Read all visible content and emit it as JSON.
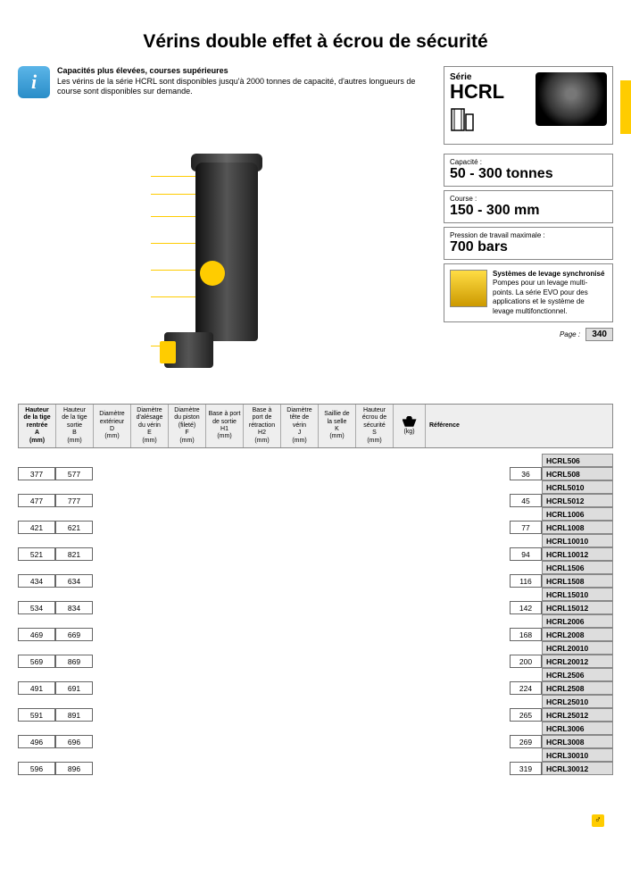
{
  "title": "Vérins double effet à écrou de sécurité",
  "info_box": {
    "heading": "Capacités plus élevées, courses supérieures",
    "body": "Les vérins de la série HCRL sont disponibles jusqu'à 2000 tonnes de capacité, d'autres longueurs de course sont disponibles sur demande."
  },
  "series": {
    "label": "Série",
    "name": "HCRL"
  },
  "specs": {
    "capacity": {
      "label": "Capacité :",
      "value": "50 - 300 tonnes"
    },
    "stroke": {
      "label": "Course :",
      "value": "150 - 300 mm"
    },
    "pressure": {
      "label": "Pression de travail maximale :",
      "value": "700 bars"
    }
  },
  "sync": {
    "title": "Systèmes de levage synchronisé",
    "body": "Pompes pour un levage multi-points. La série EVO pour des applications et le système de levage multifonctionnel."
  },
  "page_ref": {
    "label": "Page :",
    "num": "340"
  },
  "columns": [
    {
      "l1": "Hauteur",
      "l2": "de la tige",
      "l3": "rentrée",
      "sym": "A",
      "unit": "(mm)",
      "bold": true
    },
    {
      "l1": "Hauteur",
      "l2": "de la tige",
      "l3": "sortie",
      "sym": "B",
      "unit": "(mm)"
    },
    {
      "l1": "Diamètre",
      "l2": "extérieur",
      "l3": "",
      "sym": "D",
      "unit": "(mm)"
    },
    {
      "l1": "Diamètre",
      "l2": "d'alésage",
      "l3": "du vérin",
      "sym": "E",
      "unit": "(mm)"
    },
    {
      "l1": "Diamètre",
      "l2": "du piston",
      "l3": "(fileté)",
      "sym": "F",
      "unit": "(mm)"
    },
    {
      "l1": "Base à port",
      "l2": "de sortie",
      "l3": "",
      "sym": "H1",
      "unit": "(mm)"
    },
    {
      "l1": "Base à",
      "l2": "port de",
      "l3": "rétraction",
      "sym": "H2",
      "unit": "(mm)"
    },
    {
      "l1": "Diamètre",
      "l2": "tête de",
      "l3": "vérin",
      "sym": "J",
      "unit": "(mm)"
    },
    {
      "l1": "Saillie de",
      "l2": "la selle",
      "l3": "",
      "sym": "K",
      "unit": "(mm)"
    },
    {
      "l1": "Hauteur",
      "l2": "écrou de",
      "l3": "sécurité",
      "sym": "S",
      "unit": "(mm)"
    },
    {
      "icon": "kg",
      "unit": "(kg)"
    },
    {
      "ref": "Référence",
      "bold": true
    }
  ],
  "rows": [
    {
      "ref": "HCRL506"
    },
    {
      "a": "377",
      "b": "577",
      "kg": "36",
      "ref": "HCRL508"
    },
    {
      "ref": "HCRL5010"
    },
    {
      "a": "477",
      "b": "777",
      "kg": "45",
      "ref": "HCRL5012"
    },
    {
      "ref": "HCRL1006"
    },
    {
      "a": "421",
      "b": "621",
      "kg": "77",
      "ref": "HCRL1008"
    },
    {
      "ref": "HCRL10010"
    },
    {
      "a": "521",
      "b": "821",
      "kg": "94",
      "ref": "HCRL10012"
    },
    {
      "ref": "HCRL1506"
    },
    {
      "a": "434",
      "b": "634",
      "kg": "116",
      "ref": "HCRL1508"
    },
    {
      "ref": "HCRL15010"
    },
    {
      "a": "534",
      "b": "834",
      "kg": "142",
      "ref": "HCRL15012"
    },
    {
      "ref": "HCRL2006"
    },
    {
      "a": "469",
      "b": "669",
      "kg": "168",
      "ref": "HCRL2008"
    },
    {
      "ref": "HCRL20010"
    },
    {
      "a": "569",
      "b": "869",
      "kg": "200",
      "ref": "HCRL20012"
    },
    {
      "ref": "HCRL2506"
    },
    {
      "a": "491",
      "b": "691",
      "kg": "224",
      "ref": "HCRL2508"
    },
    {
      "ref": "HCRL25010"
    },
    {
      "a": "591",
      "b": "891",
      "kg": "265",
      "ref": "HCRL25012"
    },
    {
      "ref": "HCRL3006"
    },
    {
      "a": "496",
      "b": "696",
      "kg": "269",
      "ref": "HCRL3008"
    },
    {
      "ref": "HCRL30010"
    },
    {
      "a": "596",
      "b": "896",
      "kg": "319",
      "ref": "HCRL30012"
    }
  ],
  "colors": {
    "accent": "#ffcc00",
    "header_bg": "#eeeeee",
    "ref_bg": "#dddddd"
  }
}
